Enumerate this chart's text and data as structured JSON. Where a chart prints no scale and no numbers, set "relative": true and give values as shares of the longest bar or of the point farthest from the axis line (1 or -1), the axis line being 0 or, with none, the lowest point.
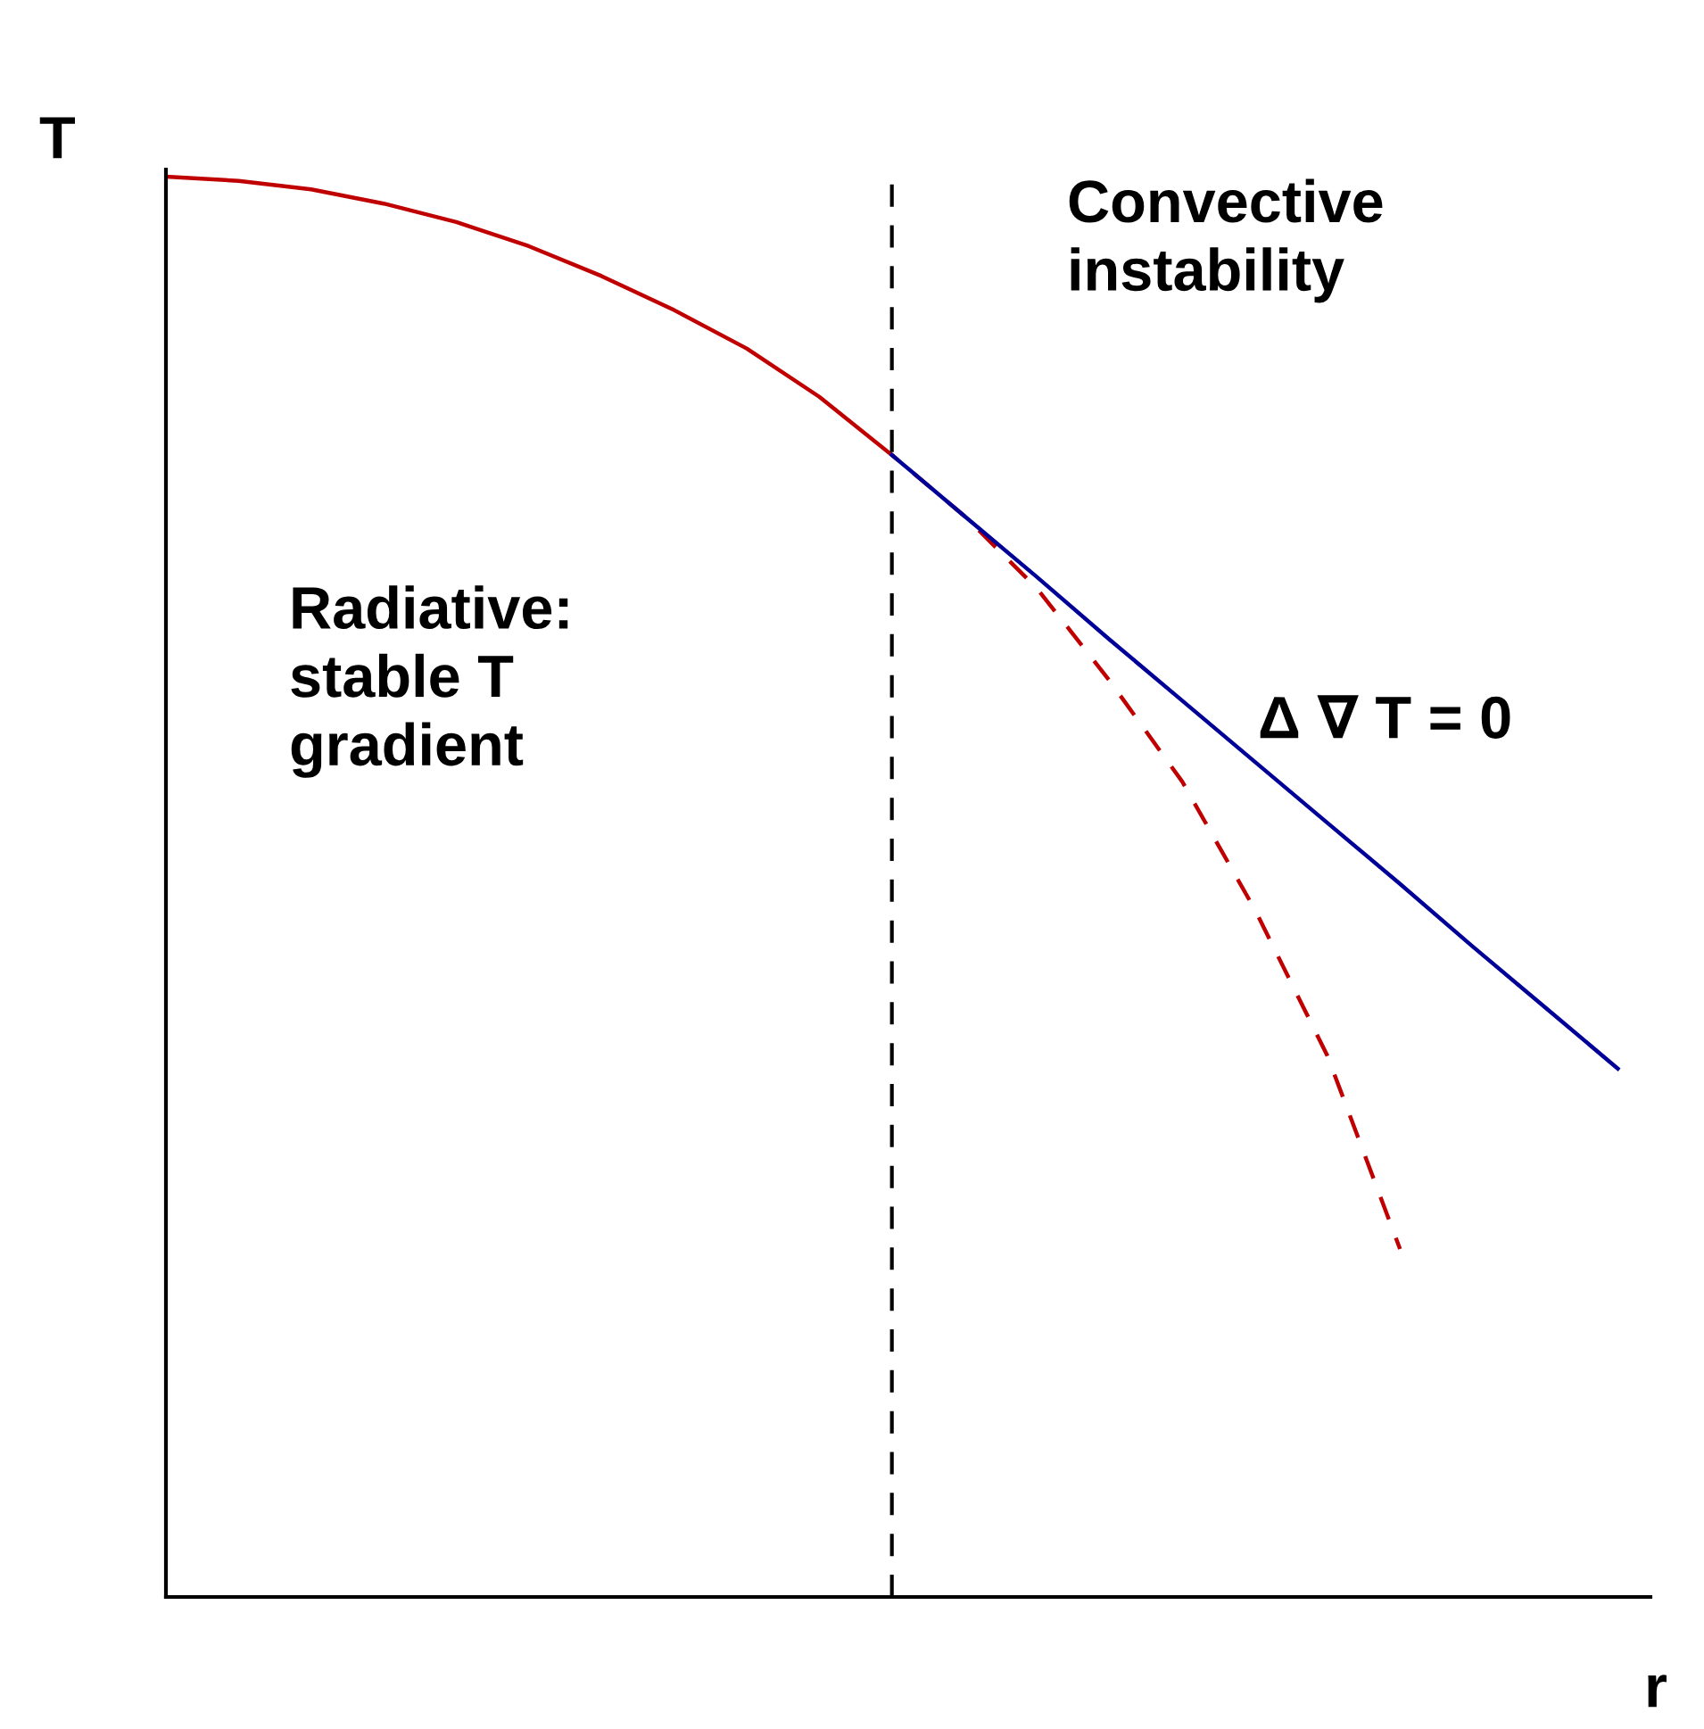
{
  "chart_data": {
    "type": "line",
    "relative": true,
    "xlabel": "r",
    "ylabel": "T",
    "legend": false,
    "marker": "none",
    "categories": [
      null,
      null,
      null,
      null,
      null,
      null,
      null,
      null,
      null,
      null,
      null,
      null,
      null,
      null,
      null,
      null,
      null,
      null,
      null,
      null,
      null
    ],
    "series": [
      {
        "color": "#c00000",
        "line_style": "solid",
        "values": [
          1,
          0.997,
          0.991,
          0.981,
          0.968,
          0.951,
          0.93,
          0.906,
          0.879,
          0.845,
          0.804,
          null,
          null,
          null,
          null,
          null,
          null,
          null,
          null,
          null,
          null
        ]
      },
      {
        "color": "#c00000",
        "line_style": "dashed",
        "values": [
          null,
          null,
          null,
          null,
          null,
          null,
          null,
          null,
          null,
          null,
          0.804,
          0.761,
          0.71,
          0.645,
          0.574,
          0.484,
          0.381,
          0.245,
          null,
          null,
          null
        ]
      },
      {
        "color": "#000099",
        "line_style": "solid",
        "values": [
          null,
          null,
          null,
          null,
          null,
          null,
          null,
          null,
          null,
          null,
          0.804,
          0.761,
          0.718,
          0.674,
          0.631,
          0.588,
          0.545,
          0.502,
          0.458,
          0.415,
          0.372
        ]
      }
    ],
    "annotations": [
      "Convective\ninstability",
      "Radiative:\nstable T\ngradient",
      "Δ ∇ T = 0"
    ]
  }
}
